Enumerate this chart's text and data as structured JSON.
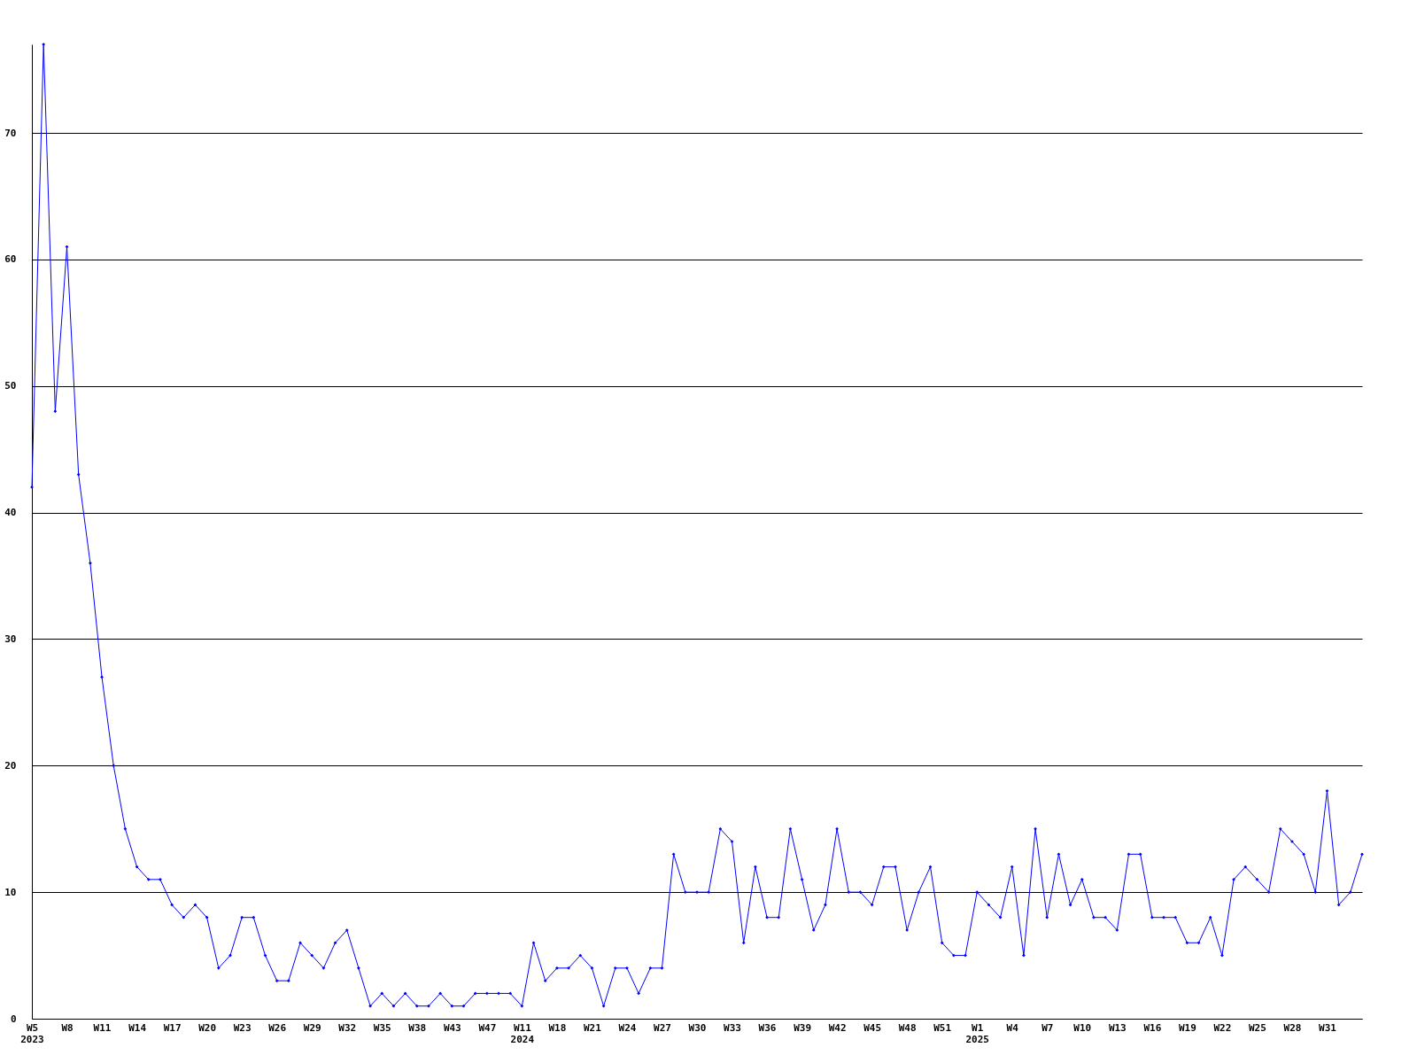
{
  "chart_data": {
    "type": "line",
    "categories": [
      "W5\n2023",
      null,
      null,
      "W8",
      null,
      null,
      "W11",
      null,
      null,
      "W14",
      null,
      null,
      "W17",
      null,
      null,
      "W20",
      null,
      null,
      "W23",
      null,
      null,
      "W26",
      null,
      null,
      "W29",
      null,
      null,
      "W32",
      null,
      null,
      "W35",
      null,
      null,
      "W38",
      null,
      null,
      "W43",
      null,
      null,
      "W47",
      null,
      null,
      "W11\n2024",
      null,
      null,
      "W18",
      null,
      null,
      "W21",
      null,
      null,
      "W24",
      null,
      null,
      "W27",
      null,
      null,
      "W30",
      null,
      null,
      "W33",
      null,
      null,
      "W36",
      null,
      null,
      "W39",
      null,
      null,
      "W42",
      null,
      null,
      "W45",
      null,
      null,
      "W48",
      null,
      null,
      "W51",
      null,
      null,
      "W1\n2025",
      null,
      null,
      "W4",
      null,
      null,
      "W7",
      null,
      null,
      "W10",
      null,
      null,
      "W13",
      null,
      null,
      "W16",
      null,
      null,
      "W19",
      null,
      null,
      "W22",
      null,
      null,
      "W25",
      null,
      null,
      "W28",
      null,
      null,
      "W31",
      null,
      null,
      null
    ],
    "series": [
      {
        "color": "#0000ff",
        "values": [
          42,
          77,
          48,
          61,
          43,
          36,
          27,
          20,
          15,
          12,
          11,
          11,
          9,
          8,
          9,
          8,
          4,
          5,
          8,
          8,
          5,
          3,
          3,
          6,
          5,
          4,
          6,
          7,
          4,
          1,
          2,
          1,
          2,
          1,
          1,
          2,
          1,
          1,
          2,
          2,
          2,
          2,
          1,
          6,
          3,
          4,
          4,
          5,
          4,
          1,
          4,
          4,
          2,
          4,
          4,
          13,
          10,
          10,
          10,
          15,
          14,
          6,
          12,
          8,
          8,
          15,
          11,
          7,
          9,
          15,
          10,
          10,
          9,
          12,
          12,
          7,
          10,
          12,
          6,
          5,
          5,
          10,
          9,
          8,
          12,
          5,
          15,
          8,
          13,
          9,
          11,
          8,
          8,
          7,
          13,
          13,
          8,
          8,
          8,
          6,
          6,
          8,
          5,
          11,
          12,
          11,
          10,
          15,
          14,
          13,
          10,
          18,
          9,
          10,
          13
        ]
      }
    ],
    "ylim": [
      0,
      77
    ],
    "yticks": [
      0,
      10,
      20,
      30,
      40,
      50,
      60,
      70
    ],
    "grid": "y",
    "marker": "diamond",
    "line_style": "solid",
    "legend": false
  }
}
